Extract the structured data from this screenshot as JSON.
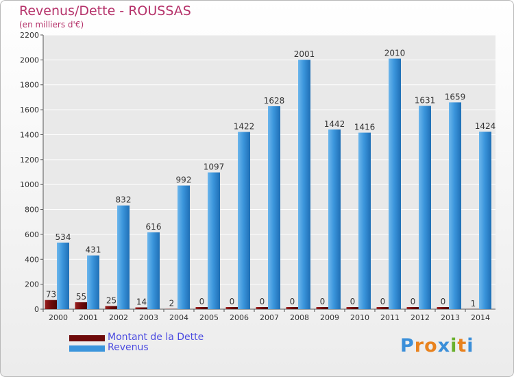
{
  "colors": {
    "debt": "#6e0a0a",
    "revenue": "#3b95dc",
    "title": "#b5326a",
    "legend_text": "#4a4ae0"
  },
  "chart_data": {
    "type": "bar",
    "title": "Revenus/Dette - ROUSSAS",
    "subtitle": "(en milliers d'€)",
    "categories": [
      "2000",
      "2001",
      "2002",
      "2003",
      "2004",
      "2005",
      "2006",
      "2007",
      "2008",
      "2009",
      "2010",
      "2011",
      "2012",
      "2013",
      "2014"
    ],
    "series": [
      {
        "name": "Montant de la Dette",
        "values": [
          73,
          55,
          25,
          14,
          2,
          0,
          0,
          0,
          0,
          0,
          0,
          0,
          0,
          0,
          1
        ]
      },
      {
        "name": "Revenus",
        "values": [
          534,
          431,
          832,
          616,
          992,
          1097,
          1422,
          1628,
          2001,
          1442,
          1416,
          2010,
          1631,
          1659,
          1424
        ]
      }
    ],
    "ylim": [
      0,
      2200
    ],
    "yticks": [
      0,
      200,
      400,
      600,
      800,
      1000,
      1200,
      1400,
      1600,
      1800,
      2000,
      2200
    ],
    "grid": true,
    "legend_position": "bottom-left"
  },
  "logo": {
    "letters": [
      "P",
      "r",
      "o",
      "x",
      "i",
      "t",
      "i"
    ],
    "colors": [
      "#3b8fd9",
      "#e8821e",
      "#e8821e",
      "#3b8fd9",
      "#6ab02e",
      "#e8821e",
      "#3b8fd9"
    ]
  }
}
